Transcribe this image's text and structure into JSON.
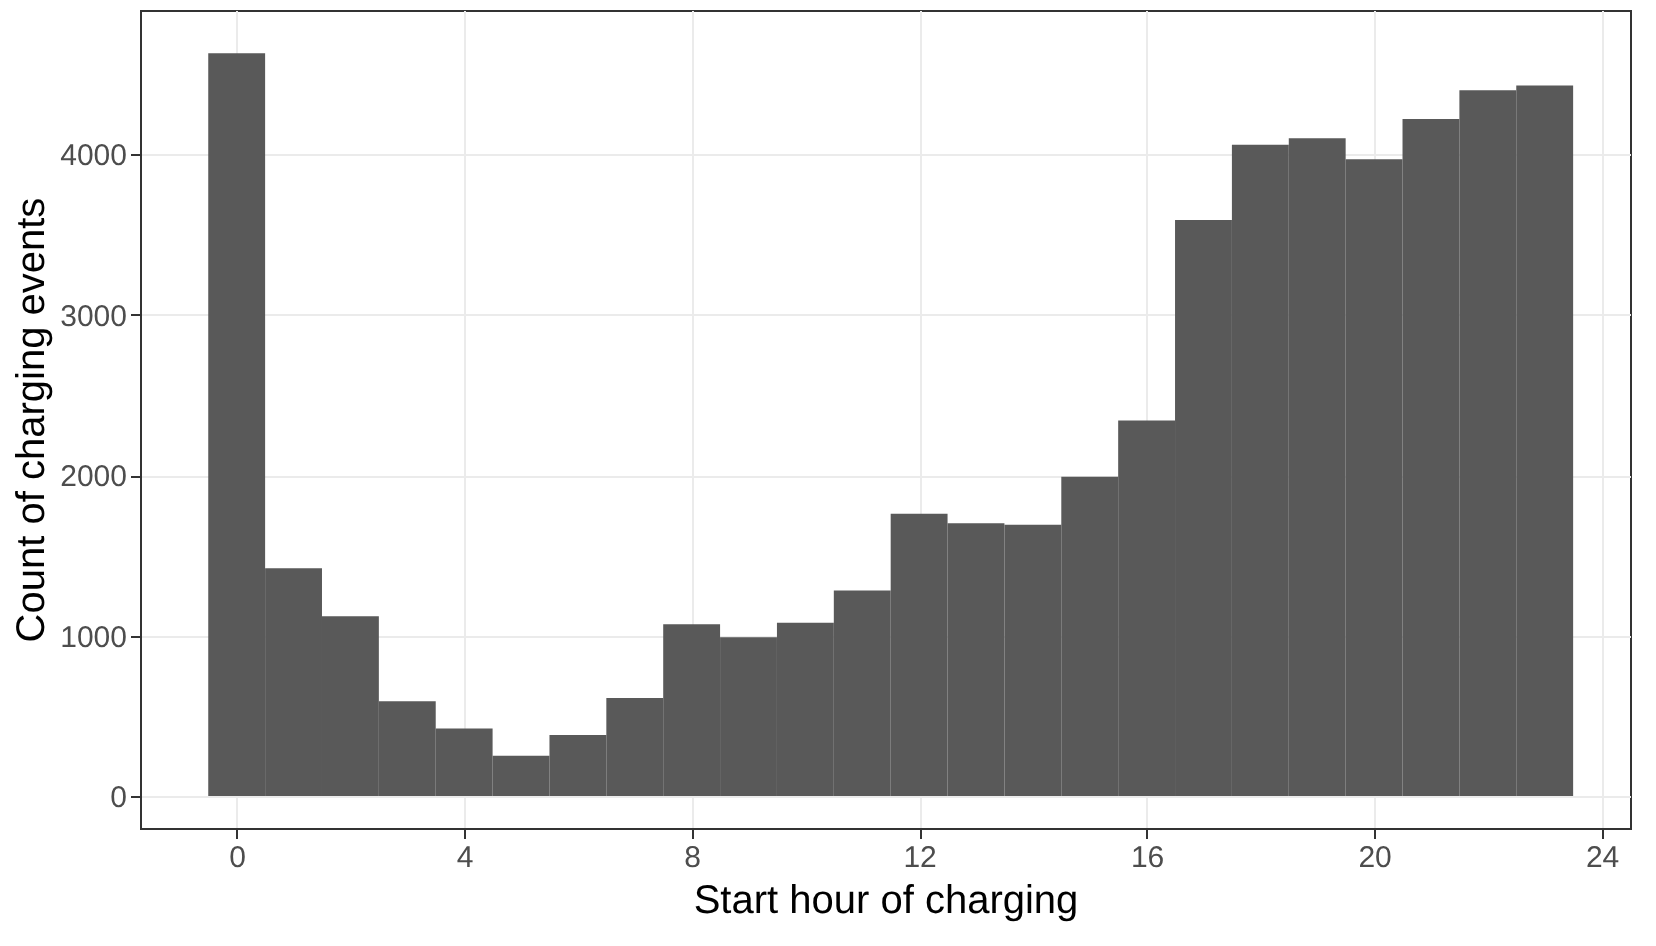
{
  "chart_data": {
    "type": "histogram",
    "xlabel": "Start hour of charging",
    "ylabel": "Count of charging events",
    "bins": [
      -0.5,
      0.5,
      1.5,
      2.5,
      3.5,
      4.5,
      5.5,
      6.5,
      7.5,
      8.5,
      9.5,
      10.5,
      11.5,
      12.5,
      13.5,
      14.5,
      15.5,
      16.5,
      17.5,
      18.5,
      19.5,
      20.5,
      21.5,
      22.5,
      23.5
    ],
    "values": [
      4630,
      1420,
      1120,
      590,
      420,
      250,
      380,
      610,
      1070,
      990,
      1080,
      1280,
      1760,
      1700,
      1690,
      1990,
      2340,
      3590,
      4060,
      4100,
      3970,
      4220,
      4400,
      4430
    ],
    "color": "#595959",
    "xlim": [
      -1.7,
      24.5
    ],
    "xticks": [
      0,
      4,
      8,
      12,
      16,
      20,
      24
    ],
    "ylim": [
      -200,
      4900
    ],
    "yticks": [
      0,
      1000,
      2000,
      3000,
      4000
    ],
    "grid": true
  }
}
